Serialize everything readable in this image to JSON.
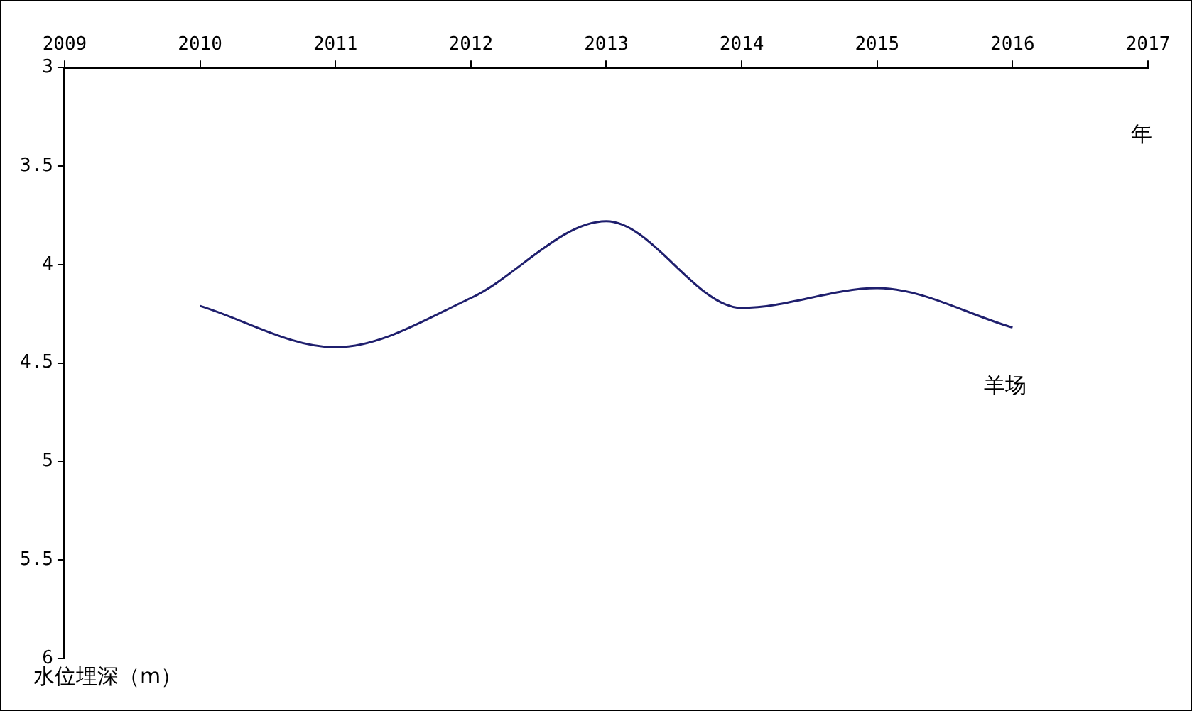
{
  "chart_data": {
    "type": "line",
    "xlabel": "年",
    "ylabel": "水位埋深（m）",
    "x": [
      2010,
      2011,
      2012,
      2013,
      2014,
      2015,
      2016
    ],
    "series": [
      {
        "name": "羊场",
        "color": "#1f1f6e",
        "values": [
          4.21,
          4.42,
          4.17,
          3.78,
          4.22,
          4.12,
          4.32
        ]
      }
    ],
    "xlim": [
      2009,
      2017
    ],
    "xticks": [
      2009,
      2010,
      2011,
      2012,
      2013,
      2014,
      2015,
      2016,
      2017
    ],
    "ylim": [
      6,
      3
    ],
    "yticks": [
      3,
      3.5,
      4,
      4.5,
      5,
      5.5,
      6
    ],
    "grid": false,
    "legend": false,
    "marker": "none",
    "line_style": "solid"
  }
}
